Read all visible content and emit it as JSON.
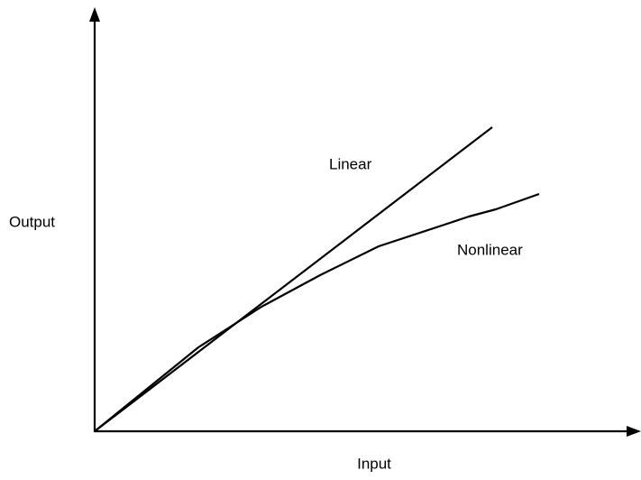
{
  "axes": {
    "y_label": "Output",
    "x_label": "Input"
  },
  "curves": [
    {
      "label": "Linear"
    },
    {
      "label": "Nonlinear"
    }
  ]
}
